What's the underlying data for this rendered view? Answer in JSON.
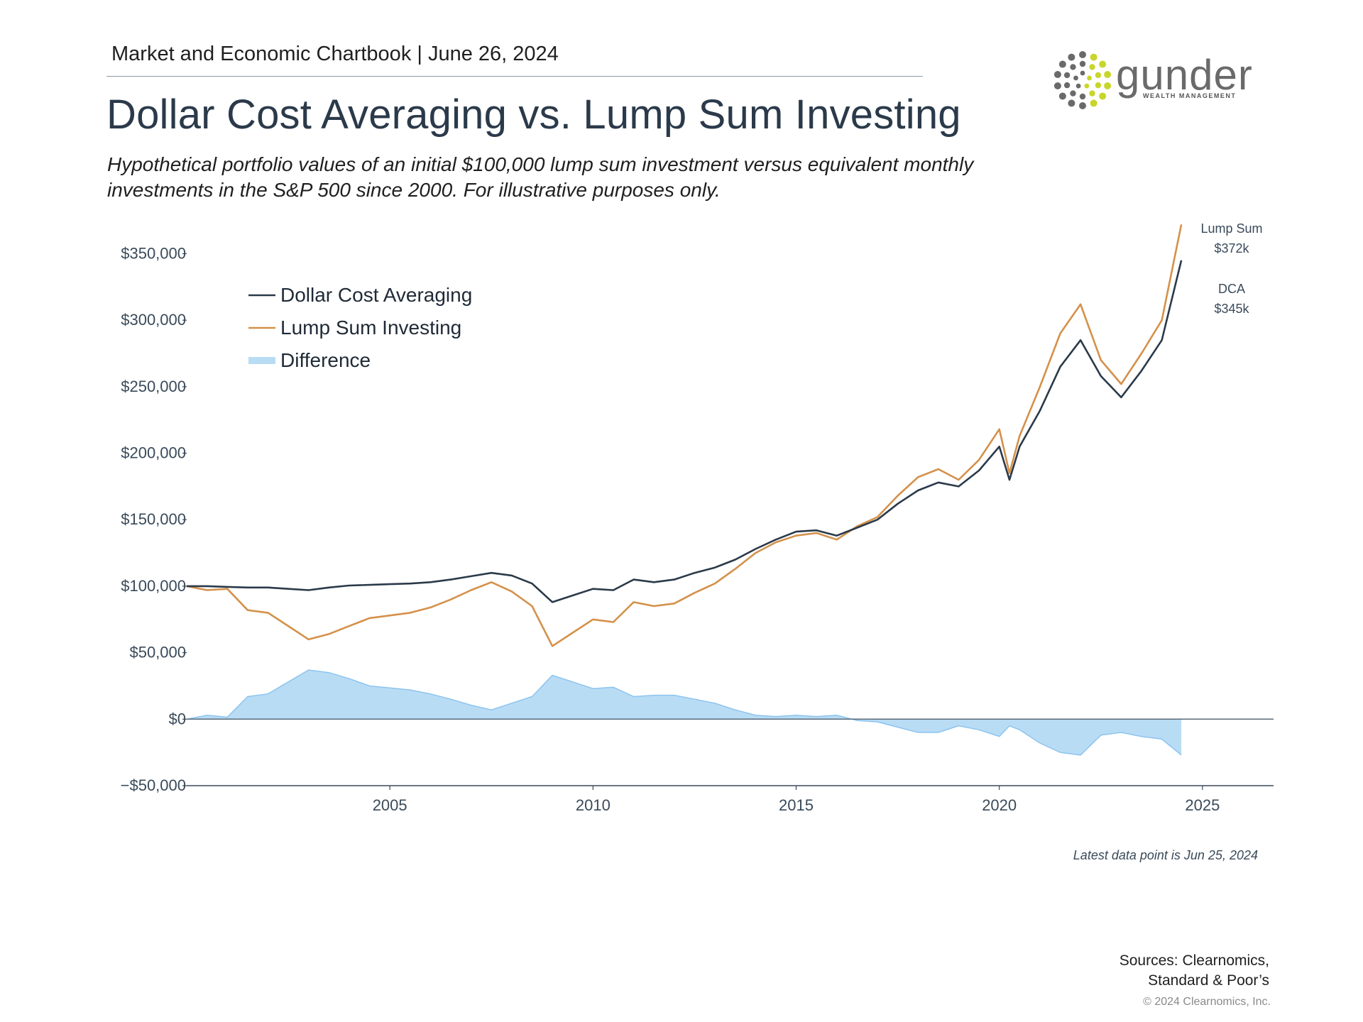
{
  "header": {
    "chartbook": "Market and Economic Chartbook | June 26, 2024",
    "title": "Dollar Cost Averaging vs. Lump Sum Investing",
    "subtitle": "Hypothetical portfolio values of an initial $100,000 lump sum investment versus equivalent monthly investments in the S&P 500 since 2000. For illustrative purposes only."
  },
  "logo": {
    "word": "gunder",
    "tagline": "WEALTH MANAGEMENT",
    "icon": "dotted-circle-logo-icon",
    "accent": "#c8d62b",
    "grey": "#6a6a6a"
  },
  "end_labels": {
    "lump_sum": [
      "Lump Sum",
      "$372k"
    ],
    "dca": [
      "DCA",
      "$345k"
    ]
  },
  "footnote": "Latest data point is Jun 25, 2024",
  "sources": [
    "Sources: Clearnomics,",
    "Standard & Poor’s"
  ],
  "copyright": "© 2024 Clearnomics, Inc.",
  "colors": {
    "dca": "#2b3a4a",
    "lump": "#d4914a",
    "diff": "#b9dcf5",
    "diff_line": "#8cc4ee",
    "axis": "#3a4a5a"
  },
  "chart_data": {
    "type": "line",
    "ylim": [
      -50000,
      370000
    ],
    "xlim": [
      2000,
      2026.75
    ],
    "yticks": [
      -50000,
      0,
      50000,
      100000,
      150000,
      200000,
      250000,
      300000,
      350000
    ],
    "ytick_labels": [
      "−$50,000",
      "$0",
      "$50,000",
      "$100,000",
      "$150,000",
      "$200,000",
      "$250,000",
      "$300,000",
      "$350,000"
    ],
    "xticks": [
      2005,
      2010,
      2015,
      2020,
      2025
    ],
    "xtick_labels": [
      "2005",
      "2010",
      "2015",
      "2020",
      "2025"
    ],
    "legend": [
      "Dollar Cost Averaging",
      "Lump Sum Investing",
      "Difference"
    ],
    "legend_position": "top-left",
    "x": [
      2000.0,
      2000.5,
      2001.0,
      2001.5,
      2002.0,
      2002.5,
      2003.0,
      2003.5,
      2004.0,
      2004.5,
      2005.0,
      2005.5,
      2006.0,
      2006.5,
      2007.0,
      2007.5,
      2008.0,
      2008.5,
      2009.0,
      2009.5,
      2010.0,
      2010.5,
      2011.0,
      2011.5,
      2012.0,
      2012.5,
      2013.0,
      2013.5,
      2014.0,
      2014.5,
      2015.0,
      2015.5,
      2016.0,
      2016.5,
      2017.0,
      2017.5,
      2018.0,
      2018.5,
      2019.0,
      2019.5,
      2020.0,
      2020.25,
      2020.5,
      2021.0,
      2021.5,
      2022.0,
      2022.5,
      2023.0,
      2023.5,
      2024.0,
      2024.48
    ],
    "series": [
      {
        "name": "Dollar Cost Averaging",
        "values": [
          100000,
          100000,
          99500,
          99000,
          99000,
          98000,
          97000,
          99000,
          100500,
          101000,
          101500,
          102000,
          103000,
          105000,
          107500,
          110000,
          108000,
          102000,
          88000,
          93000,
          98000,
          97000,
          105000,
          103000,
          105000,
          110000,
          114000,
          120000,
          128000,
          135000,
          141000,
          142000,
          138000,
          144000,
          150000,
          162000,
          172000,
          178000,
          175000,
          187000,
          205000,
          180000,
          205000,
          232000,
          265000,
          285000,
          258000,
          242000,
          262000,
          285000,
          345000
        ]
      },
      {
        "name": "Lump Sum Investing",
        "values": [
          100000,
          97000,
          98000,
          82000,
          80000,
          70000,
          60000,
          64000,
          70000,
          76000,
          78000,
          80000,
          84000,
          90000,
          97000,
          103000,
          96000,
          85000,
          55000,
          65000,
          75000,
          73000,
          88000,
          85000,
          87000,
          95000,
          102000,
          113000,
          125000,
          133000,
          138000,
          140000,
          135000,
          145000,
          152000,
          168000,
          182000,
          188000,
          180000,
          195000,
          218000,
          185000,
          213000,
          250000,
          290000,
          312000,
          270000,
          252000,
          275000,
          300000,
          372000
        ]
      },
      {
        "name": "Difference",
        "values": [
          0,
          3000,
          1500,
          17000,
          19000,
          28000,
          37000,
          35000,
          30500,
          25000,
          23500,
          22000,
          19000,
          15000,
          10500,
          7000,
          12000,
          17000,
          33000,
          28000,
          23000,
          24000,
          17000,
          18000,
          18000,
          15000,
          12000,
          7000,
          3000,
          2000,
          3000,
          2000,
          3000,
          -1000,
          -2000,
          -6000,
          -10000,
          -10000,
          -5000,
          -8000,
          -13000,
          -5000,
          -8000,
          -18000,
          -25000,
          -27000,
          -12000,
          -10000,
          -13000,
          -15000,
          -27000
        ]
      }
    ]
  }
}
